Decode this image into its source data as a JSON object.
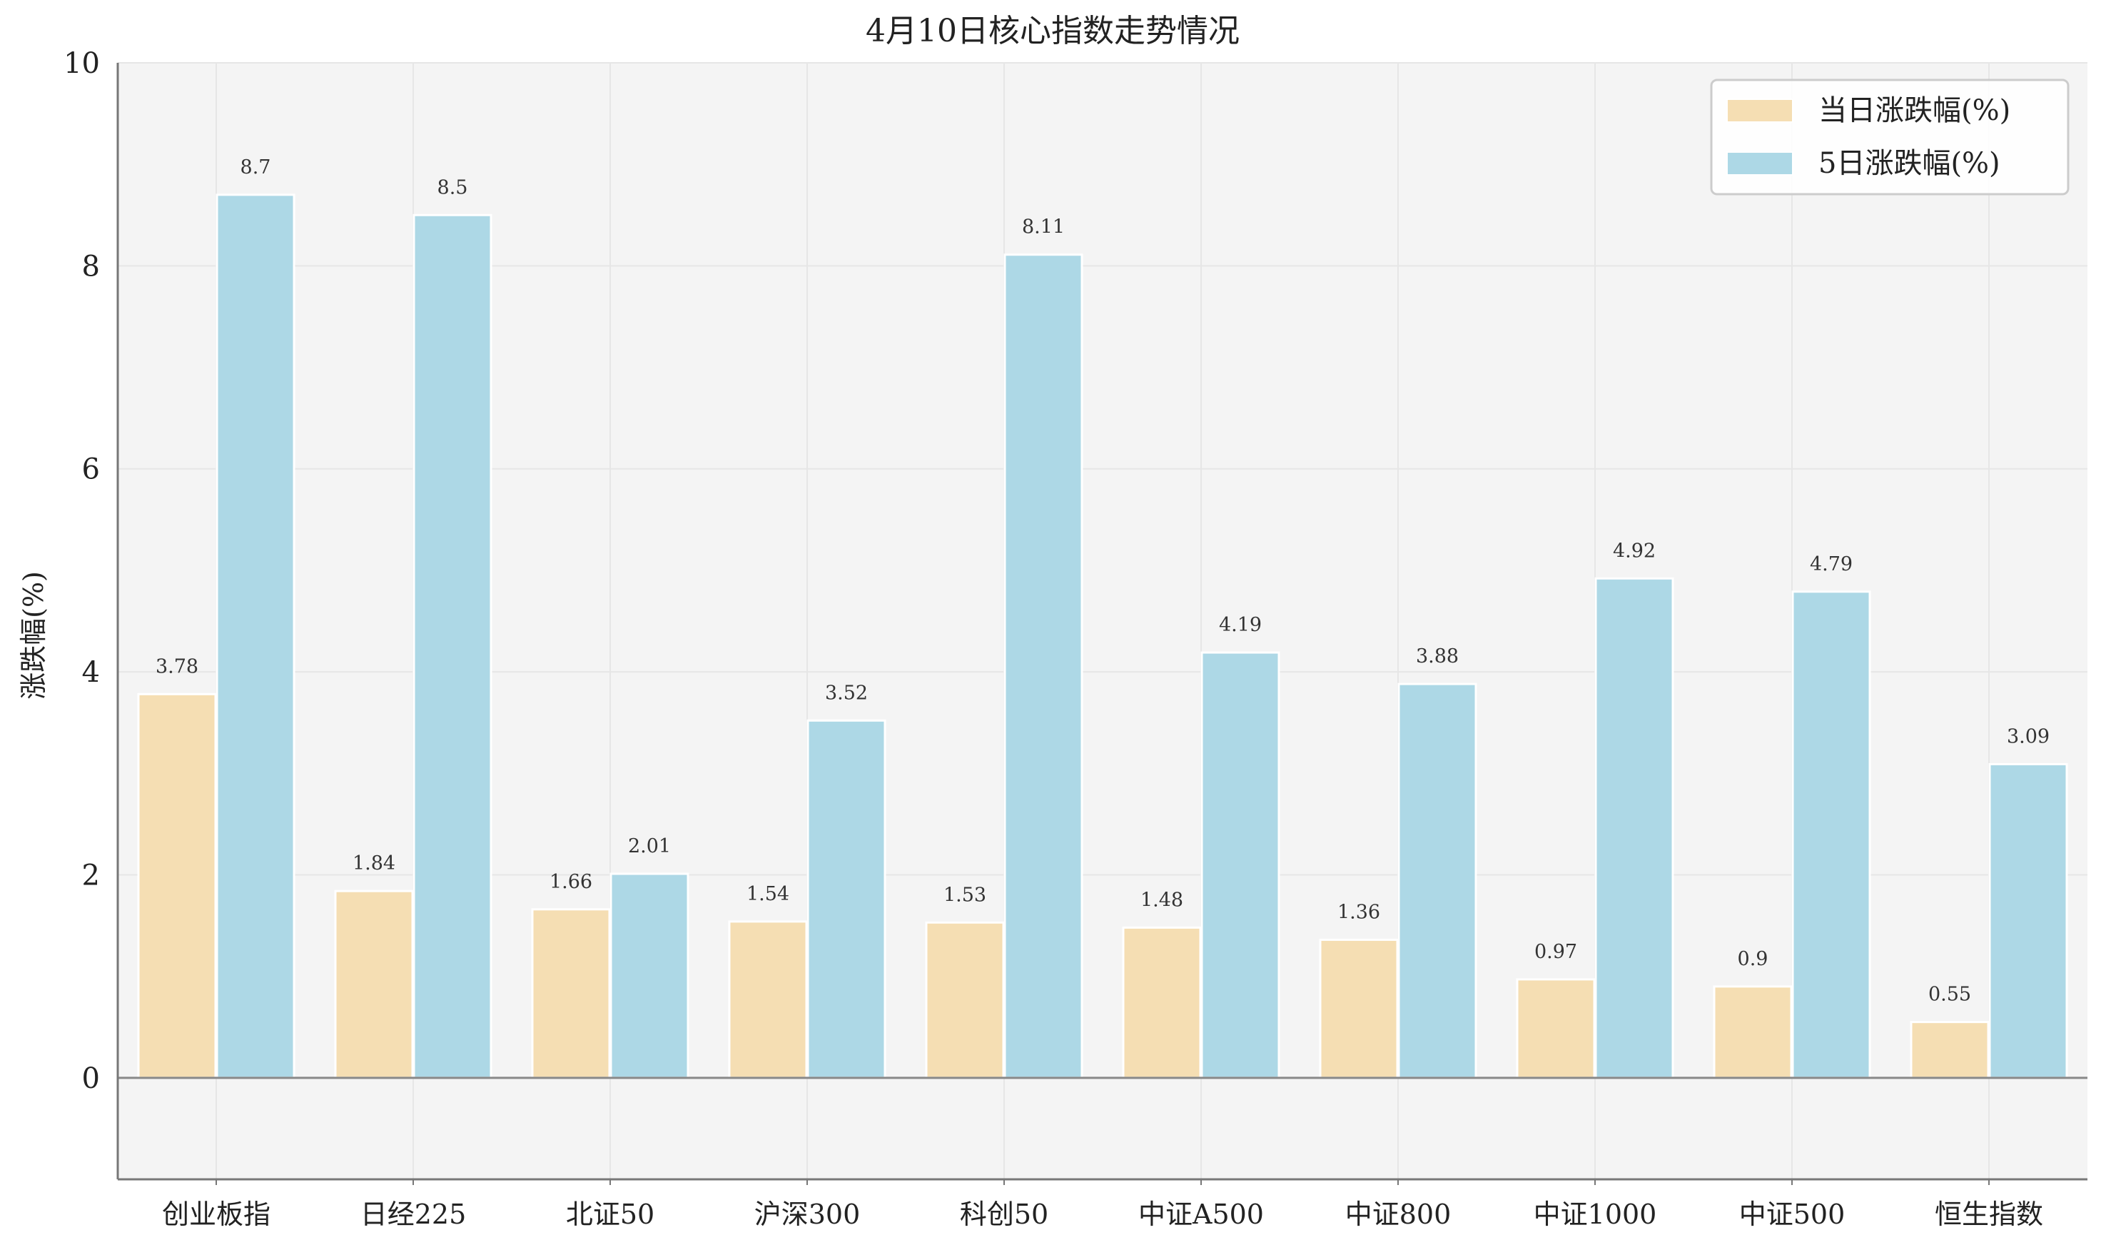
{
  "chart_data": {
    "type": "bar",
    "title": "4月10日核心指数走势情况",
    "xlabel": "",
    "ylabel": "涨跌幅(%)",
    "ylim": [
      -1,
      10
    ],
    "yticks": [
      0,
      2,
      4,
      6,
      8,
      10
    ],
    "grid": true,
    "legend_position": "top-right",
    "categories": [
      "创业板指",
      "日经225",
      "北证50",
      "沪深300",
      "科创50",
      "中证A500",
      "中证800",
      "中证1000",
      "中证500",
      "恒生指数"
    ],
    "series": [
      {
        "name": "当日涨跌幅(%)",
        "color": "#F5DEB3",
        "values": [
          3.78,
          1.84,
          1.66,
          1.54,
          1.53,
          1.48,
          1.36,
          0.97,
          0.9,
          0.55
        ],
        "labels": [
          "3.78",
          "1.84",
          "1.66",
          "1.54",
          "1.53",
          "1.48",
          "1.36",
          "0.97",
          "0.9",
          "0.55"
        ]
      },
      {
        "name": "5日涨跌幅(%)",
        "color": "#ADD8E6",
        "values": [
          8.7,
          8.5,
          2.01,
          3.52,
          8.11,
          4.19,
          3.88,
          4.92,
          4.79,
          3.09
        ],
        "labels": [
          "8.7",
          "8.5",
          "2.01",
          "3.52",
          "8.11",
          "4.19",
          "3.88",
          "4.92",
          "4.79",
          "3.09"
        ]
      }
    ],
    "colors": {
      "plot_background": "#F4F4F4",
      "grid": "#E6E6E6",
      "axis": "#777777",
      "zero_line": "#888888",
      "bar_edge": "#FFFFFF"
    }
  }
}
